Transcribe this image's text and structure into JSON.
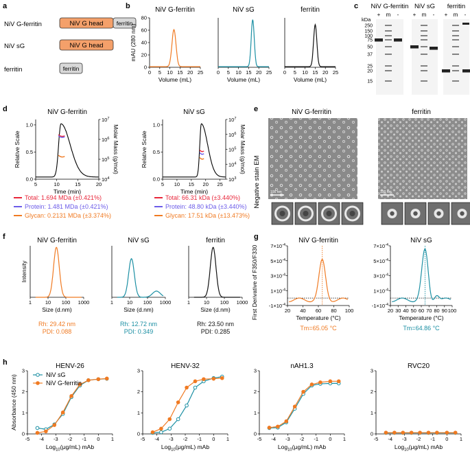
{
  "panel_letters": [
    "a",
    "b",
    "c",
    "d",
    "e",
    "f",
    "g",
    "h"
  ],
  "colors": {
    "orange": "#F07A22",
    "teal": "#1B8FA3",
    "black": "#111111",
    "red": "#E8263A",
    "purple": "#6B5BE8",
    "gray": "#d8d8d8"
  },
  "panel_a": {
    "rows": [
      {
        "name": "NiV G-ferritin",
        "blocks": [
          "NiV G head",
          "ferritin"
        ]
      },
      {
        "name": "NiV sG",
        "blocks": [
          "NiV G head"
        ]
      },
      {
        "name": "ferritin",
        "blocks": [
          "ferritin"
        ]
      }
    ]
  },
  "panel_c": {
    "kda_label": "kDa",
    "markers": [
      "250",
      "150",
      "100",
      "75",
      "50",
      "37",
      "25",
      "20",
      "15"
    ],
    "gels": [
      {
        "title": "NiV G-ferritin",
        "lanes": [
          "+",
          "m",
          "-"
        ]
      },
      {
        "title": "NiV sG",
        "lanes": [
          "+",
          "m",
          "-"
        ]
      },
      {
        "title": "ferritin",
        "lanes": [
          "+",
          "m",
          "-"
        ]
      }
    ]
  },
  "panel_e": {
    "titles": [
      "NiV G-ferritin",
      "ferritin"
    ],
    "side_label": "Negative stain EM",
    "scale": "100 nm"
  },
  "chart_data": [
    {
      "id": "b1",
      "type": "line",
      "title": "NiV G-ferritin",
      "xlabel": "Volume (mL)",
      "ylabel": "mAU (280 nm)",
      "xlim": [
        0,
        25
      ],
      "ylim": [
        0,
        80
      ],
      "xticks": [
        0,
        5,
        10,
        15,
        20,
        25
      ],
      "yticks": [
        0,
        20,
        40,
        60,
        80
      ],
      "peak_x": 12,
      "peak_y": 60,
      "width": 1.0,
      "color": "orange"
    },
    {
      "id": "b2",
      "type": "line",
      "title": "NiV sG",
      "xlabel": "Volume (mL)",
      "ylabel": "",
      "xlim": [
        0,
        25
      ],
      "ylim": [
        0,
        80
      ],
      "xticks": [
        0,
        5,
        10,
        15,
        20,
        25
      ],
      "yticks": [],
      "peak_x": 17,
      "peak_y": 76,
      "width": 0.75,
      "color": "teal"
    },
    {
      "id": "b3",
      "type": "line",
      "title": "ferritin",
      "xlabel": "Volume (mL)",
      "ylabel": "",
      "xlim": [
        0,
        25
      ],
      "ylim": [
        0,
        80
      ],
      "xticks": [
        0,
        5,
        10,
        15,
        20,
        25
      ],
      "yticks": [],
      "peak_x": 15,
      "peak_y": 68,
      "width": 0.8,
      "color": "black"
    },
    {
      "id": "d1",
      "type": "line",
      "title": "NiV G-ferritin",
      "xlabel": "Time (min)",
      "ylabel": "Relative Scale",
      "y2label": "Molar Mass (g/mol)",
      "xlim": [
        5,
        20
      ],
      "xticks": [
        5,
        10,
        15,
        20
      ],
      "ylim": [
        0,
        1.1
      ],
      "yticks": [
        "0.0",
        "0.5",
        "1.0"
      ],
      "y2ticks": [
        "10^4",
        "10^5",
        "10^6",
        "10^7"
      ],
      "peak_x": 11,
      "legend": [
        {
          "text": "Total: 1.694 MDa (±0.421%)",
          "color": "red"
        },
        {
          "text": "Protein: 1.481 MDa (±0.421%)",
          "color": "purple"
        },
        {
          "text": "Glycan: 0.2131 MDa (±3.374%)",
          "color": "orange"
        }
      ]
    },
    {
      "id": "d2",
      "type": "line",
      "title": "NiV sG",
      "xlabel": "Time (min)",
      "ylabel": "Relative Scale",
      "y2label": "Molar Mass (g/mol)",
      "xlim": [
        5,
        27
      ],
      "xticks": [
        5,
        10,
        15,
        20,
        25
      ],
      "ylim": [
        0,
        1.1
      ],
      "yticks": [
        "0.0",
        "0.5",
        "1.0"
      ],
      "y2ticks": [
        "10^3",
        "10^4",
        "10^5",
        "10^6",
        "10^7"
      ],
      "peak_x": 18.5,
      "legend": [
        {
          "text": "Total: 66.31 kDa (±3.440%)",
          "color": "red"
        },
        {
          "text": "Protein: 48.80 kDa (±3.440%)",
          "color": "purple"
        },
        {
          "text": "Glycan: 17.51 kDa (±13.473%)",
          "color": "orange"
        }
      ]
    },
    {
      "id": "f1",
      "type": "line",
      "title": "NiV G-ferritin",
      "xlabel": "Size (d.nm)",
      "ylabel": "Intensity",
      "xticks": [
        "1",
        "10",
        "100",
        "1000"
      ],
      "peak_log": 1.47,
      "color": "orange",
      "rh": "Rh: 29.42 nm",
      "pdi": "PDI: 0.088"
    },
    {
      "id": "f2",
      "type": "line",
      "title": "NiV sG",
      "xlabel": "Size (d.nm)",
      "ylabel": "",
      "xticks": [
        "1",
        "10",
        "100",
        "1000"
      ],
      "peak_log": 1.1,
      "color": "teal",
      "rh": "Rh: 12.72 nm",
      "pdi": "PDI: 0.349"
    },
    {
      "id": "f3",
      "type": "line",
      "title": "ferritin",
      "xlabel": "Size (d.nm)",
      "ylabel": "",
      "xticks": [
        "1",
        "10",
        "100",
        "1000"
      ],
      "peak_log": 1.37,
      "color": "black",
      "rh": "Rh: 23.50 nm",
      "pdi": "PDI: 0.285"
    },
    {
      "id": "g1",
      "type": "line",
      "title": "NiV G-ferritin",
      "xlabel": "Temperature (°C)",
      "ylabel": "First Derivative of F350/F330",
      "xlim": [
        20,
        100
      ],
      "xticks": [
        20,
        40,
        60,
        80,
        100
      ],
      "yticks": [
        "7×10^-4",
        "5×10^-4",
        "3×10^-4",
        "1×10^-4",
        "-1×10^-4"
      ],
      "tm": 65.05,
      "tm_label": "Tm=65.05 °C",
      "color": "orange"
    },
    {
      "id": "g2",
      "type": "line",
      "title": "NiV sG",
      "xlabel": "Temperature (°C)",
      "ylabel": "",
      "xlim": [
        20,
        100
      ],
      "xticks": [
        20,
        30,
        40,
        50,
        60,
        70,
        80,
        90,
        100
      ],
      "yticks": [
        "7×10^-4",
        "5×10^-4",
        "3×10^-4",
        "1×10^-4",
        "-1×10^-4"
      ],
      "tm": 64.86,
      "tm_label": "Tm=64.86 °C",
      "color": "teal"
    },
    {
      "id": "h",
      "type": "line",
      "xlabel": "Log10(μg/mL) mAb",
      "ylabel": "Absorbance (450 nm)",
      "xlim": [
        -5,
        1
      ],
      "ylim": [
        0,
        3
      ],
      "xticks": [
        -5,
        -4,
        -3,
        -2,
        -1,
        0,
        1
      ],
      "yticks": [
        0,
        1,
        2,
        3
      ],
      "x_points": [
        -4.3,
        -3.7,
        -3.1,
        -2.5,
        -1.9,
        -1.3,
        -0.7,
        0.0,
        0.6
      ],
      "legend": [
        "NiV sG",
        "NiV G-ferritin"
      ],
      "panels": [
        {
          "title": "HENV-26",
          "sG": [
            0.28,
            0.22,
            0.45,
            0.95,
            1.75,
            2.3,
            2.55,
            2.6,
            2.62
          ],
          "Gf": [
            0.05,
            0.12,
            0.42,
            1.02,
            1.8,
            2.35,
            2.55,
            2.6,
            2.63
          ]
        },
        {
          "title": "HENV-32",
          "sG": [
            0.05,
            0.08,
            0.25,
            0.7,
            1.35,
            2.2,
            2.5,
            2.65,
            2.72
          ],
          "Gf": [
            0.08,
            0.25,
            0.7,
            1.5,
            2.2,
            2.5,
            2.6,
            2.62,
            2.65
          ]
        },
        {
          "title": "nAH1.3",
          "sG": [
            0.28,
            0.3,
            0.55,
            1.2,
            1.9,
            2.3,
            2.38,
            2.4,
            2.4
          ],
          "Gf": [
            0.3,
            0.35,
            0.6,
            1.3,
            2.0,
            2.35,
            2.45,
            2.5,
            2.5
          ]
        },
        {
          "title": "RVC20",
          "sG": [
            0.05,
            0.05,
            0.05,
            0.05,
            0.05,
            0.05,
            0.05,
            0.05,
            0.05
          ],
          "Gf": [
            0.06,
            0.06,
            0.06,
            0.06,
            0.06,
            0.06,
            0.06,
            0.06,
            0.06
          ]
        }
      ]
    }
  ]
}
